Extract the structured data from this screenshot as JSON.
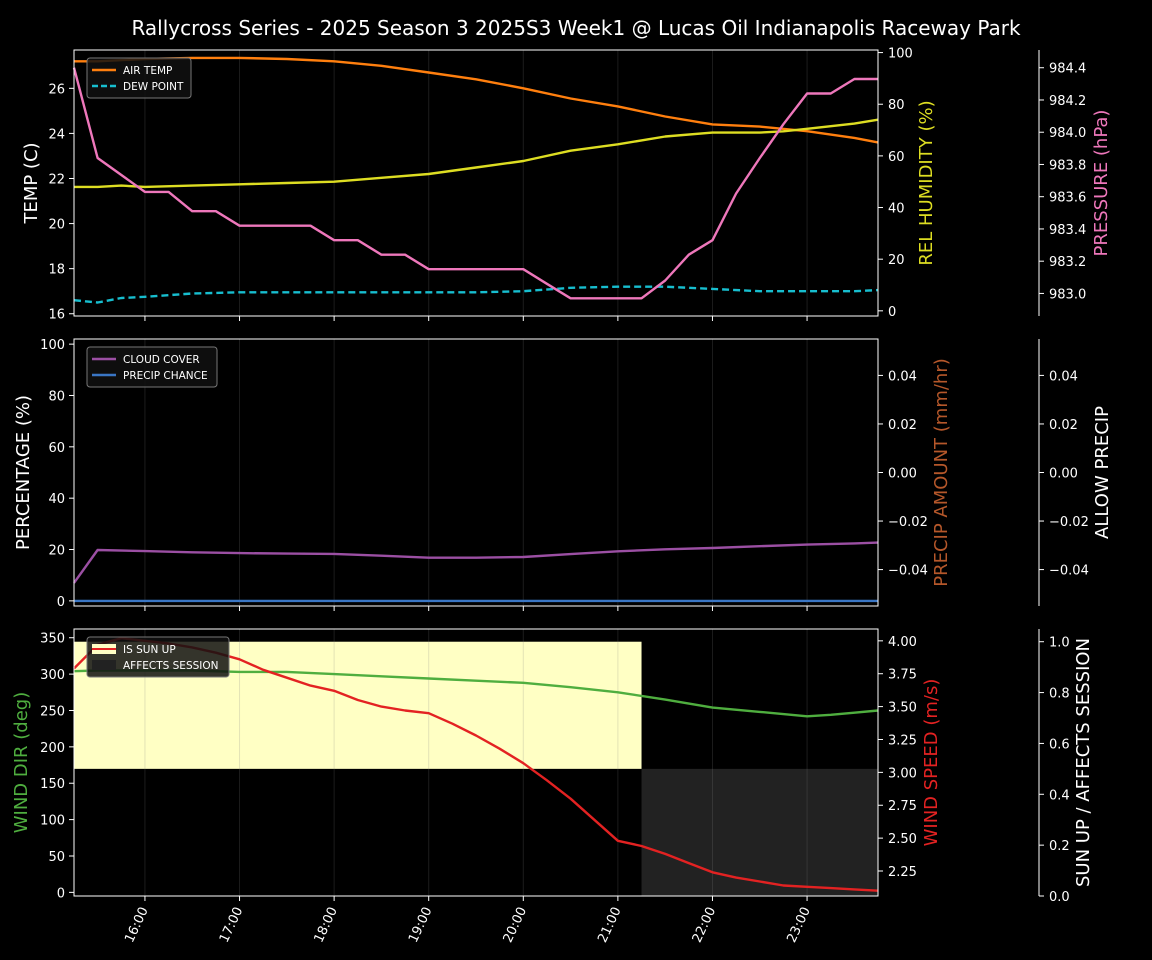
{
  "title": "Rallycross Series - 2025 Season 3 2025S3 Week1 @ Lucas Oil Indianapolis Raceway Park",
  "x_axis": {
    "start": 15.25,
    "end": 23.75,
    "ticks": [
      {
        "value": 16,
        "label": "16:00"
      },
      {
        "value": 17,
        "label": "17:00"
      },
      {
        "value": 18,
        "label": "18:00"
      },
      {
        "value": 19,
        "label": "19:00"
      },
      {
        "value": 20,
        "label": "20:00"
      },
      {
        "value": 21,
        "label": "21:00"
      },
      {
        "value": 22,
        "label": "22:00"
      },
      {
        "value": 23,
        "label": "23:00"
      }
    ]
  },
  "chart_data": [
    {
      "type": "line",
      "panel": "weather",
      "axes": {
        "left": {
          "label": "TEMP (C)",
          "range": [
            15.9,
            27.7
          ],
          "ticks": [
            16,
            18,
            20,
            22,
            24,
            26
          ],
          "color": "#ffffff"
        },
        "right": {
          "label": "REL HUMIDITY (%)",
          "range": [
            -2,
            101
          ],
          "ticks": [
            0,
            20,
            40,
            60,
            80,
            100
          ],
          "color": "#dddd22"
        },
        "right2": {
          "label": "PRESSURE (hPa)",
          "range": [
            982.86,
            984.51
          ],
          "ticks": [
            983.0,
            983.2,
            983.4,
            983.6,
            983.8,
            984.0,
            984.2,
            984.4
          ],
          "tick_labels": [
            "983.0",
            "983.2",
            "983.4",
            "983.6",
            "983.8",
            "984.0",
            "984.2",
            "984.4"
          ],
          "color": "#ee77bb"
        }
      },
      "legend": {
        "position": "top-left",
        "entries": [
          "AIR TEMP",
          "DEW POINT"
        ]
      },
      "series": [
        {
          "name": "AIR TEMP",
          "axis": "left",
          "color": "#ff7f0e",
          "dash": false,
          "x": [
            15.25,
            15.5,
            16,
            16.5,
            17,
            17.5,
            18,
            18.5,
            19,
            19.5,
            20,
            20.5,
            21,
            21.5,
            22,
            22.5,
            23,
            23.5,
            23.75
          ],
          "y": [
            27.2,
            27.2,
            27.3,
            27.35,
            27.35,
            27.3,
            27.2,
            27.0,
            26.7,
            26.4,
            26.0,
            25.55,
            25.2,
            24.75,
            24.4,
            24.3,
            24.1,
            23.8,
            23.6
          ]
        },
        {
          "name": "DEW POINT",
          "axis": "left",
          "color": "#17becf",
          "dash": true,
          "x": [
            15.25,
            15.5,
            15.75,
            16,
            16.5,
            17,
            17.5,
            18,
            18.5,
            19,
            19.5,
            20,
            20.5,
            21,
            21.5,
            22,
            22.5,
            23,
            23.5,
            23.75
          ],
          "y": [
            16.6,
            16.5,
            16.7,
            16.75,
            16.9,
            16.95,
            16.95,
            16.95,
            16.95,
            16.95,
            16.95,
            17.0,
            17.15,
            17.2,
            17.2,
            17.1,
            17.0,
            17.0,
            17.0,
            17.05
          ]
        },
        {
          "name": "",
          "axis": "right",
          "color": "#dddd22",
          "dash": false,
          "x": [
            15.25,
            15.5,
            15.75,
            16,
            16.5,
            17,
            17.5,
            18,
            18.5,
            19,
            19.5,
            20,
            20.5,
            21,
            21.5,
            22,
            22.5,
            22.75,
            23,
            23.5,
            23.75
          ],
          "y": [
            48,
            48,
            48.5,
            48,
            48.5,
            49,
            49.5,
            50,
            51.5,
            53,
            55.5,
            58,
            62,
            64.5,
            67.5,
            69,
            69,
            69.5,
            70.5,
            72.5,
            74
          ]
        },
        {
          "name": "",
          "axis": "right2",
          "color": "#ee77bb",
          "dash": false,
          "x": [
            15.25,
            15.5,
            16,
            16.25,
            16.5,
            16.75,
            17,
            17.25,
            17.5,
            17.75,
            18,
            18.25,
            18.5,
            18.75,
            19,
            19.25,
            19.5,
            19.75,
            20,
            20.25,
            20.5,
            20.75,
            21,
            21.25,
            21.5,
            21.75,
            22,
            22.25,
            22.5,
            22.75,
            23,
            23.25,
            23.5,
            23.75
          ],
          "y": [
            984.4,
            983.84,
            983.63,
            983.63,
            983.51,
            983.51,
            983.42,
            983.42,
            983.42,
            983.42,
            983.33,
            983.33,
            983.24,
            983.24,
            983.15,
            983.15,
            983.15,
            983.15,
            983.15,
            983.06,
            982.97,
            982.97,
            982.97,
            982.97,
            983.08,
            983.24,
            983.33,
            983.62,
            983.84,
            984.05,
            984.24,
            984.24,
            984.33,
            984.33
          ]
        }
      ]
    },
    {
      "type": "line",
      "panel": "precip",
      "axes": {
        "left": {
          "label": "PERCENTAGE (%)",
          "range": [
            -2,
            102
          ],
          "ticks": [
            0,
            20,
            40,
            60,
            80,
            100
          ],
          "color": "#ffffff"
        },
        "right": {
          "label": "PRECIP AMOUNT (mm/hr)",
          "range": [
            -0.055,
            0.055
          ],
          "ticks": [
            -0.04,
            -0.02,
            0,
            0.02,
            0.04
          ],
          "tick_labels": [
            "−0.04",
            "−0.02",
            "0.00",
            "0.02",
            "0.04"
          ],
          "color": "#b5572a"
        },
        "right2": {
          "label": "ALLOW PRECIP",
          "range": [
            -0.055,
            0.055
          ],
          "ticks": [
            -0.04,
            -0.02,
            0,
            0.02,
            0.04
          ],
          "tick_labels": [
            "−0.04",
            "−0.02",
            "0.00",
            "0.02",
            "0.04"
          ],
          "color": "#ffffff"
        }
      },
      "legend": {
        "position": "top-left",
        "entries": [
          "CLOUD COVER",
          "PRECIP CHANCE"
        ]
      },
      "series": [
        {
          "name": "CLOUD COVER",
          "axis": "left",
          "color": "#9b4fa3",
          "dash": false,
          "x": [
            15.25,
            15.5,
            16,
            16.5,
            17,
            17.5,
            18,
            18.5,
            19,
            19.5,
            20,
            20.5,
            21,
            21.5,
            22,
            22.5,
            23,
            23.5,
            23.75
          ],
          "y": [
            7,
            19.8,
            19.4,
            18.9,
            18.6,
            18.4,
            18.3,
            17.6,
            16.8,
            16.8,
            17.1,
            18.2,
            19.3,
            20.1,
            20.6,
            21.3,
            21.9,
            22.4,
            22.7
          ]
        },
        {
          "name": "PRECIP CHANCE",
          "axis": "left",
          "color": "#3a76c4",
          "dash": false,
          "x": [
            15.25,
            23.75
          ],
          "y": [
            0,
            0
          ]
        }
      ]
    },
    {
      "type": "line",
      "panel": "wind",
      "axes": {
        "left": {
          "label": "WIND DIR (deg)",
          "range": [
            -5,
            362
          ],
          "ticks": [
            0,
            50,
            100,
            150,
            200,
            250,
            300,
            350
          ],
          "color": "#4fae3f"
        },
        "right": {
          "label": "WIND SPEED (m/s)",
          "range": [
            2.06,
            4.09
          ],
          "ticks": [
            2.25,
            2.5,
            2.75,
            3.0,
            3.25,
            3.5,
            3.75,
            4.0
          ],
          "tick_labels": [
            "2.25",
            "2.50",
            "2.75",
            "3.00",
            "3.25",
            "3.50",
            "3.75",
            "4.00"
          ],
          "color": "#e32222"
        },
        "right2": {
          "label": "SUN UP / AFFECTS SESSION",
          "range": [
            0,
            1.05
          ],
          "ticks": [
            0,
            0.2,
            0.4,
            0.6,
            0.8,
            1.0
          ],
          "tick_labels": [
            "0.0",
            "0.2",
            "0.4",
            "0.6",
            "0.8",
            "1.0"
          ],
          "color": "#ffffff"
        }
      },
      "legend": {
        "position": "top-left",
        "entries": [
          "IS SUN UP",
          "AFFECTS SESSION"
        ]
      },
      "bands": [
        {
          "name": "IS SUN UP",
          "color": "#ffffc4",
          "x": [
            15.25,
            21.25
          ],
          "y": [
            0.5,
            1.0
          ]
        },
        {
          "name": "AFFECTS SESSION",
          "color": "#222222",
          "x": [
            21.25,
            23.75
          ],
          "y": [
            0.0,
            0.5
          ]
        }
      ],
      "series": [
        {
          "name": "",
          "axis": "left",
          "color": "#4fae3f",
          "dash": false,
          "x": [
            15.25,
            15.5,
            16,
            16.5,
            17,
            17.5,
            18,
            18.5,
            19,
            19.5,
            20,
            20.5,
            21,
            21.5,
            22,
            22.5,
            23,
            23.25,
            23.5,
            23.75
          ],
          "y": [
            304,
            305,
            305,
            305,
            303,
            303,
            300,
            297,
            294,
            291,
            288,
            282,
            275,
            265,
            254,
            248,
            242,
            244,
            247,
            250
          ]
        },
        {
          "name": "",
          "axis": "right",
          "color": "#e32222",
          "dash": false,
          "x": [
            15.25,
            15.5,
            15.75,
            16,
            16.25,
            16.5,
            16.75,
            17,
            17.25,
            17.5,
            17.75,
            18,
            18.25,
            18.5,
            18.75,
            19,
            19.25,
            19.5,
            19.75,
            20,
            20.25,
            20.5,
            20.75,
            21,
            21.25,
            21.5,
            21.75,
            22,
            22.25,
            22.5,
            22.75,
            23,
            23.25,
            23.5,
            23.75
          ],
          "y": [
            3.79,
            3.97,
            4.02,
            4.0,
            3.98,
            3.95,
            3.91,
            3.86,
            3.78,
            3.72,
            3.66,
            3.62,
            3.55,
            3.5,
            3.47,
            3.45,
            3.37,
            3.28,
            3.18,
            3.07,
            2.94,
            2.8,
            2.64,
            2.48,
            2.44,
            2.38,
            2.31,
            2.24,
            2.2,
            2.17,
            2.14,
            2.13,
            2.12,
            2.11,
            2.1
          ]
        }
      ]
    }
  ]
}
